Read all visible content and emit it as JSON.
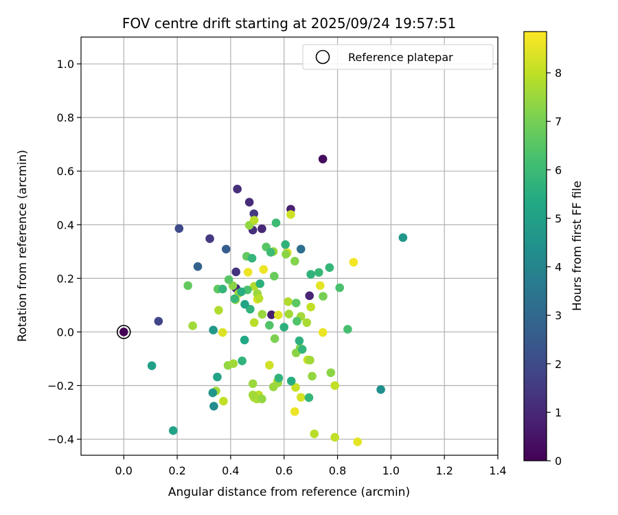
{
  "chart_data": {
    "type": "scatter",
    "title": "FOV centre drift starting at 2025/09/24 19:57:51",
    "xlabel": "Angular distance from reference (arcmin)",
    "ylabel": "Rotation from reference (arcmin)",
    "xlim": [
      -0.16,
      1.4
    ],
    "ylim": [
      -0.46,
      1.1
    ],
    "xticks": [
      0.0,
      0.2,
      0.4,
      0.6,
      0.8,
      1.0,
      1.2,
      1.4
    ],
    "xtick_labels": [
      "0.0",
      "0.2",
      "0.4",
      "0.6",
      "0.8",
      "1.0",
      "1.2",
      "1.4"
    ],
    "yticks": [
      -0.4,
      -0.2,
      0.0,
      0.2,
      0.4,
      0.6,
      0.8,
      1.0
    ],
    "ytick_labels": [
      "−0.4",
      "−0.2",
      "0.0",
      "0.2",
      "0.4",
      "0.6",
      "0.8",
      "1.0"
    ],
    "grid": true,
    "legend": {
      "label": "Reference platepar",
      "location": "top-right"
    },
    "reference_point": {
      "x": 0.0,
      "y": 0.0,
      "hours": 0
    },
    "colorbar": {
      "label": "Hours from first FF file",
      "colormap": "viridis",
      "range": [
        0,
        8.85
      ],
      "ticks": [
        0,
        1,
        2,
        3,
        4,
        5,
        6,
        7,
        8
      ],
      "tick_labels": [
        "0",
        "1",
        "2",
        "3",
        "4",
        "5",
        "6",
        "7",
        "8"
      ]
    },
    "points": [
      {
        "x": 0.745,
        "y": 0.645,
        "hours": 0.3
      },
      {
        "x": 0.425,
        "y": 0.533,
        "hours": 1.2
      },
      {
        "x": 0.47,
        "y": 0.484,
        "hours": 1.1
      },
      {
        "x": 0.625,
        "y": 0.458,
        "hours": 0.8
      },
      {
        "x": 0.487,
        "y": 0.441,
        "hours": 1.5
      },
      {
        "x": 0.207,
        "y": 0.386,
        "hours": 2.0
      },
      {
        "x": 0.483,
        "y": 0.38,
        "hours": 1.2
      },
      {
        "x": 0.517,
        "y": 0.385,
        "hours": 1.0
      },
      {
        "x": 0.322,
        "y": 0.348,
        "hours": 1.5
      },
      {
        "x": 0.383,
        "y": 0.309,
        "hours": 2.6
      },
      {
        "x": 0.663,
        "y": 0.309,
        "hours": 3.2
      },
      {
        "x": 0.277,
        "y": 0.244,
        "hours": 2.8
      },
      {
        "x": 0.42,
        "y": 0.224,
        "hours": 1.3
      },
      {
        "x": 0.42,
        "y": 0.163,
        "hours": 1.0
      },
      {
        "x": 0.695,
        "y": 0.135,
        "hours": 0.9
      },
      {
        "x": 0.13,
        "y": 0.04,
        "hours": 1.8
      },
      {
        "x": 0.553,
        "y": 0.064,
        "hours": 0.7
      },
      {
        "x": 0.625,
        "y": 0.438,
        "hours": 8.2
      },
      {
        "x": 0.86,
        "y": 0.26,
        "hours": 8.7
      },
      {
        "x": 0.465,
        "y": 0.223,
        "hours": 8.6
      },
      {
        "x": 0.523,
        "y": 0.233,
        "hours": 8.6
      },
      {
        "x": 0.612,
        "y": 0.296,
        "hours": 8.4
      },
      {
        "x": 0.735,
        "y": 0.173,
        "hours": 8.5
      },
      {
        "x": 0.5,
        "y": 0.122,
        "hours": 8.5
      },
      {
        "x": 0.578,
        "y": 0.063,
        "hours": 8.4
      },
      {
        "x": 0.745,
        "y": -0.002,
        "hours": 8.6
      },
      {
        "x": 0.37,
        "y": -0.002,
        "hours": 8.4
      },
      {
        "x": 0.545,
        "y": -0.124,
        "hours": 8.2
      },
      {
        "x": 0.688,
        "y": -0.104,
        "hours": 8.1
      },
      {
        "x": 0.64,
        "y": -0.297,
        "hours": 8.6
      },
      {
        "x": 0.875,
        "y": -0.41,
        "hours": 8.5
      },
      {
        "x": 0.373,
        "y": -0.258,
        "hours": 8.0
      },
      {
        "x": 0.575,
        "y": -0.185,
        "hours": 8.1
      },
      {
        "x": 0.663,
        "y": -0.244,
        "hours": 8.3
      },
      {
        "x": 0.643,
        "y": -0.207,
        "hours": 8.1
      },
      {
        "x": 0.488,
        "y": -0.245,
        "hours": 7.8
      },
      {
        "x": 0.505,
        "y": -0.235,
        "hours": 7.9
      },
      {
        "x": 0.498,
        "y": -0.25,
        "hours": 7.7
      },
      {
        "x": 0.713,
        "y": -0.38,
        "hours": 7.9
      },
      {
        "x": 0.79,
        "y": -0.393,
        "hours": 8.0
      },
      {
        "x": 0.79,
        "y": -0.2,
        "hours": 8.0
      },
      {
        "x": 0.355,
        "y": 0.081,
        "hours": 7.8
      },
      {
        "x": 0.258,
        "y": 0.023,
        "hours": 7.6
      },
      {
        "x": 0.615,
        "y": 0.113,
        "hours": 7.8
      },
      {
        "x": 0.7,
        "y": 0.093,
        "hours": 8.0
      },
      {
        "x": 0.488,
        "y": 0.035,
        "hours": 7.9
      },
      {
        "x": 0.518,
        "y": 0.066,
        "hours": 7.5
      },
      {
        "x": 0.618,
        "y": 0.067,
        "hours": 7.6
      },
      {
        "x": 0.663,
        "y": 0.058,
        "hours": 7.6
      },
      {
        "x": 0.685,
        "y": 0.035,
        "hours": 7.7
      },
      {
        "x": 0.47,
        "y": 0.398,
        "hours": 7.4
      },
      {
        "x": 0.488,
        "y": 0.417,
        "hours": 7.9
      },
      {
        "x": 0.56,
        "y": 0.3,
        "hours": 7.5
      },
      {
        "x": 0.607,
        "y": 0.29,
        "hours": 7.3
      },
      {
        "x": 0.64,
        "y": 0.264,
        "hours": 7.2
      },
      {
        "x": 0.418,
        "y": 0.12,
        "hours": 7.4
      },
      {
        "x": 0.43,
        "y": 0.144,
        "hours": 7.6
      },
      {
        "x": 0.5,
        "y": 0.143,
        "hours": 7.5
      },
      {
        "x": 0.488,
        "y": 0.17,
        "hours": 7.8
      },
      {
        "x": 0.506,
        "y": 0.125,
        "hours": 7.9
      },
      {
        "x": 0.408,
        "y": 0.173,
        "hours": 7.3
      },
      {
        "x": 0.345,
        "y": -0.22,
        "hours": 7.6
      },
      {
        "x": 0.39,
        "y": -0.125,
        "hours": 7.4
      },
      {
        "x": 0.41,
        "y": -0.118,
        "hours": 7.6
      },
      {
        "x": 0.483,
        "y": -0.193,
        "hours": 7.5
      },
      {
        "x": 0.483,
        "y": -0.235,
        "hours": 7.6
      },
      {
        "x": 0.517,
        "y": -0.25,
        "hours": 7.4
      },
      {
        "x": 0.56,
        "y": -0.205,
        "hours": 7.5
      },
      {
        "x": 0.577,
        "y": -0.19,
        "hours": 7.5
      },
      {
        "x": 0.645,
        "y": -0.078,
        "hours": 7.3
      },
      {
        "x": 0.66,
        "y": -0.06,
        "hours": 7.2
      },
      {
        "x": 0.697,
        "y": -0.105,
        "hours": 7.6
      },
      {
        "x": 0.705,
        "y": -0.165,
        "hours": 7.4
      },
      {
        "x": 0.775,
        "y": -0.152,
        "hours": 7.3
      },
      {
        "x": 0.565,
        "y": -0.025,
        "hours": 7.1
      },
      {
        "x": 0.746,
        "y": 0.133,
        "hours": 7.0
      },
      {
        "x": 0.24,
        "y": 0.173,
        "hours": 6.7
      },
      {
        "x": 0.352,
        "y": 0.16,
        "hours": 6.6
      },
      {
        "x": 0.393,
        "y": 0.195,
        "hours": 6.5
      },
      {
        "x": 0.46,
        "y": 0.282,
        "hours": 6.7
      },
      {
        "x": 0.563,
        "y": 0.208,
        "hours": 6.8
      },
      {
        "x": 0.533,
        "y": 0.317,
        "hours": 6.5
      },
      {
        "x": 0.645,
        "y": 0.108,
        "hours": 6.6
      },
      {
        "x": 0.648,
        "y": 0.04,
        "hours": 6.4
      },
      {
        "x": 0.808,
        "y": 0.165,
        "hours": 6.3
      },
      {
        "x": 0.838,
        "y": 0.01,
        "hours": 6.2
      },
      {
        "x": 0.545,
        "y": 0.025,
        "hours": 6.4
      },
      {
        "x": 0.463,
        "y": 0.157,
        "hours": 6.3
      },
      {
        "x": 0.57,
        "y": 0.407,
        "hours": 6.0
      },
      {
        "x": 0.48,
        "y": 0.275,
        "hours": 5.8
      },
      {
        "x": 0.55,
        "y": 0.297,
        "hours": 6.0
      },
      {
        "x": 0.605,
        "y": 0.326,
        "hours": 5.7
      },
      {
        "x": 0.73,
        "y": 0.222,
        "hours": 5.9
      },
      {
        "x": 0.7,
        "y": 0.215,
        "hours": 5.7
      },
      {
        "x": 0.77,
        "y": 0.24,
        "hours": 5.8
      },
      {
        "x": 0.37,
        "y": 0.16,
        "hours": 5.8
      },
      {
        "x": 0.44,
        "y": 0.15,
        "hours": 5.5
      },
      {
        "x": 0.473,
        "y": 0.085,
        "hours": 5.7
      },
      {
        "x": 0.51,
        "y": 0.18,
        "hours": 5.6
      },
      {
        "x": 0.6,
        "y": 0.018,
        "hours": 5.6
      },
      {
        "x": 0.415,
        "y": 0.124,
        "hours": 5.9
      },
      {
        "x": 0.657,
        "y": -0.033,
        "hours": 5.6
      },
      {
        "x": 0.668,
        "y": -0.065,
        "hours": 5.8
      },
      {
        "x": 0.443,
        "y": -0.108,
        "hours": 5.7
      },
      {
        "x": 0.58,
        "y": -0.172,
        "hours": 5.7
      },
      {
        "x": 0.627,
        "y": -0.183,
        "hours": 5.5
      },
      {
        "x": 0.693,
        "y": -0.245,
        "hours": 5.8
      },
      {
        "x": 0.453,
        "y": 0.103,
        "hours": 5.2
      },
      {
        "x": 0.452,
        "y": -0.03,
        "hours": 5.3
      },
      {
        "x": 0.35,
        "y": -0.168,
        "hours": 5.1
      },
      {
        "x": 0.105,
        "y": -0.126,
        "hours": 5.0
      },
      {
        "x": 0.185,
        "y": -0.368,
        "hours": 5.1
      },
      {
        "x": 0.335,
        "y": 0.007,
        "hours": 4.7
      },
      {
        "x": 0.333,
        "y": -0.227,
        "hours": 4.6
      },
      {
        "x": 0.337,
        "y": -0.277,
        "hours": 4.3
      },
      {
        "x": 1.045,
        "y": 0.352,
        "hours": 4.6
      },
      {
        "x": 0.962,
        "y": -0.215,
        "hours": 4.4
      }
    ]
  }
}
